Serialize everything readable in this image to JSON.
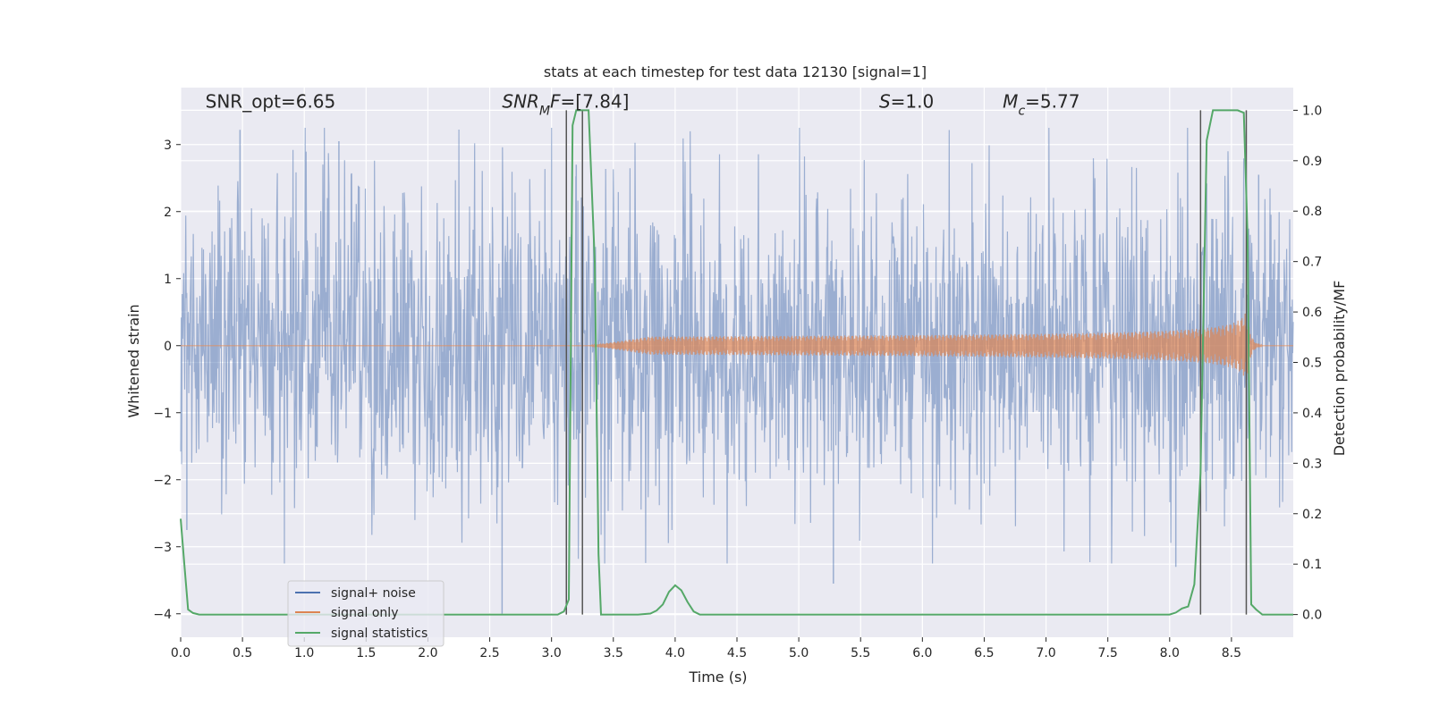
{
  "chart_data": {
    "type": "line",
    "title": "stats at each timestep for test data 12130 [signal=1]",
    "xlabel": "Time (s)",
    "ylabel": "Whitened strain",
    "y2label": "Detection probability/MF",
    "xlim": [
      0.0,
      9.0
    ],
    "ylim": [
      -4.35,
      3.85
    ],
    "y2lim": [
      -0.045,
      1.045
    ],
    "x_ticks": [
      0.0,
      0.5,
      1.0,
      1.5,
      2.0,
      2.5,
      3.0,
      3.5,
      4.0,
      4.5,
      5.0,
      5.5,
      6.0,
      6.5,
      7.0,
      7.5,
      8.0,
      8.5
    ],
    "x_tick_labels": [
      "0.0",
      "0.5",
      "1.0",
      "1.5",
      "2.0",
      "2.5",
      "3.0",
      "3.5",
      "4.0",
      "4.5",
      "5.0",
      "5.5",
      "6.0",
      "6.5",
      "7.0",
      "7.5",
      "8.0",
      "8.5"
    ],
    "y_ticks": [
      -4,
      -3,
      -2,
      -1,
      0,
      1,
      2,
      3
    ],
    "y_tick_labels": [
      "−4",
      "−3",
      "−2",
      "−1",
      "0",
      "1",
      "2",
      "3"
    ],
    "y2_ticks": [
      0.0,
      0.1,
      0.2,
      0.3,
      0.4,
      0.5,
      0.6,
      0.7,
      0.8,
      0.9,
      1.0
    ],
    "y2_tick_labels": [
      "0.0",
      "0.1",
      "0.2",
      "0.3",
      "0.4",
      "0.5",
      "0.6",
      "0.7",
      "0.8",
      "0.9",
      "1.0"
    ],
    "grid": true,
    "legend_position": "lower-left",
    "annotations": [
      {
        "text": "SNR_opt=6.65",
        "x": 0.2,
        "y": 3.55
      },
      {
        "text_parts": [
          {
            "t": "SNR",
            "style": "italic"
          },
          {
            "t": "M",
            "style": "italic-sub"
          },
          {
            "t": "F",
            "style": "italic"
          },
          {
            "t": "=[7.84]",
            "style": "normal"
          }
        ],
        "x": 2.6,
        "y": 3.55
      },
      {
        "text_parts": [
          {
            "t": "S",
            "style": "italic"
          },
          {
            "t": "=1.0",
            "style": "normal"
          }
        ],
        "x": 5.65,
        "y": 3.55
      },
      {
        "text_parts": [
          {
            "t": "M",
            "style": "italic"
          },
          {
            "t": "c",
            "style": "italic-sub"
          },
          {
            "t": "=5.77",
            "style": "normal"
          }
        ],
        "x": 6.65,
        "y": 3.55
      }
    ],
    "vertical_lines": [
      {
        "x": 3.12,
        "y_range": [
          0.0,
          1.0
        ]
      },
      {
        "x": 3.25,
        "y_range": [
          0.0,
          1.0
        ]
      },
      {
        "x": 8.25,
        "y_range": [
          0.0,
          1.0
        ]
      },
      {
        "x": 8.62,
        "y_range": [
          0.0,
          1.0
        ]
      }
    ],
    "series": [
      {
        "name": "signal+ noise",
        "axis": "left",
        "color": "#4c72b0",
        "envelope": {
          "typical_abs": 1.3,
          "peak_abs": 3.25
        },
        "notable_peaks": [
          {
            "x": 0.48,
            "y": 3.22
          },
          {
            "x": 1.28,
            "y": 3.05
          },
          {
            "x": 2.6,
            "y": -4.0
          },
          {
            "x": 3.2,
            "y": 2.7
          },
          {
            "x": 5.28,
            "y": -3.55
          },
          {
            "x": 8.05,
            "y": -3.3
          },
          {
            "x": 8.72,
            "y": 2.55
          },
          {
            "x": 0.05,
            "y": -2.75
          }
        ]
      },
      {
        "name": "signal only",
        "axis": "left",
        "color": "#dd8452",
        "chirp": {
          "start_x": 3.3,
          "merger_x": 8.62,
          "peak_amplitude": 0.6,
          "ringdown_end_x": 8.75
        }
      },
      {
        "name": "signal statistics",
        "axis": "right",
        "color": "#55a868",
        "x": [
          0.0,
          0.03,
          0.06,
          0.1,
          0.15,
          0.2,
          0.5,
          1.0,
          1.5,
          2.0,
          2.5,
          3.0,
          3.05,
          3.1,
          3.14,
          3.17,
          3.2,
          3.25,
          3.3,
          3.35,
          3.38,
          3.4,
          3.45,
          3.7,
          3.8,
          3.85,
          3.9,
          3.95,
          4.0,
          4.05,
          4.1,
          4.15,
          4.2,
          4.3,
          5.0,
          6.0,
          7.0,
          8.0,
          8.05,
          8.1,
          8.15,
          8.2,
          8.25,
          8.3,
          8.35,
          8.4,
          8.5,
          8.55,
          8.6,
          8.63,
          8.66,
          8.7,
          8.75,
          8.8,
          9.0
        ],
        "values": [
          0.19,
          0.1,
          0.01,
          0.003,
          0.0,
          0.0,
          0.0,
          0.0,
          0.0,
          0.0,
          0.0,
          0.0,
          0.0,
          0.006,
          0.03,
          0.97,
          1.0,
          1.0,
          1.0,
          0.7,
          0.12,
          0.0,
          0.0,
          0.0,
          0.002,
          0.008,
          0.02,
          0.045,
          0.058,
          0.048,
          0.025,
          0.006,
          0.0,
          0.0,
          0.0,
          0.0,
          0.0,
          0.0,
          0.004,
          0.012,
          0.016,
          0.06,
          0.28,
          0.94,
          1.0,
          1.0,
          1.0,
          1.0,
          0.995,
          0.75,
          0.02,
          0.01,
          0.0,
          0.0,
          0.0
        ]
      }
    ]
  },
  "legend": {
    "items": [
      {
        "label": "signal+ noise",
        "color": "#4c72b0"
      },
      {
        "label": "signal only",
        "color": "#dd8452"
      },
      {
        "label": "signal statistics",
        "color": "#55a868"
      }
    ]
  }
}
